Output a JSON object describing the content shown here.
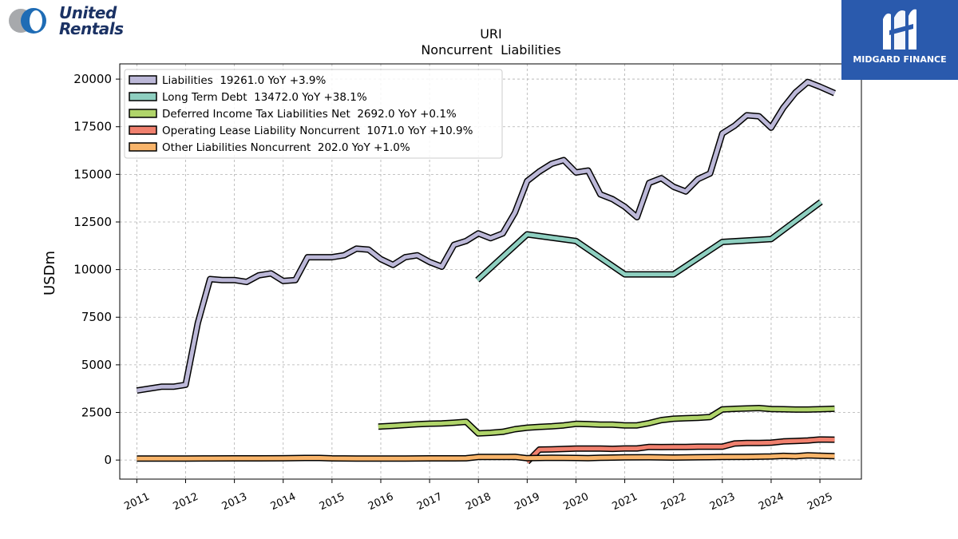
{
  "logos": {
    "left_line1": "United",
    "left_line2": "Rentals",
    "left_color": "#1b3264",
    "right_text": "MIDGARD FINANCE",
    "right_bg": "#2a5aad"
  },
  "chart_data": {
    "type": "line",
    "title": "URI",
    "subtitle": "Noncurrent  Liabilities",
    "ylabel": "USDm",
    "xlabel": "",
    "xlim": [
      2010.65,
      2025.85
    ],
    "ylim": [
      -1000,
      20800
    ],
    "yticks": [
      0,
      2500,
      5000,
      7500,
      10000,
      12500,
      15000,
      17500,
      20000
    ],
    "xticks": [
      "2011",
      "2012",
      "2013",
      "2014",
      "2015",
      "2016",
      "2017",
      "2018",
      "2019",
      "2020",
      "2021",
      "2022",
      "2023",
      "2024",
      "2025"
    ],
    "grid": true,
    "legend_position": "top-left",
    "series": [
      {
        "name": "Liabilities  19261.0 YoY +3.9%",
        "color": "#bcb8d8",
        "points": [
          [
            2011.0,
            3650
          ],
          [
            2011.25,
            3750
          ],
          [
            2011.5,
            3850
          ],
          [
            2011.75,
            3850
          ],
          [
            2012.0,
            3950
          ],
          [
            2012.25,
            7200
          ],
          [
            2012.5,
            9500
          ],
          [
            2012.75,
            9450
          ],
          [
            2013.0,
            9450
          ],
          [
            2013.25,
            9350
          ],
          [
            2013.5,
            9700
          ],
          [
            2013.75,
            9800
          ],
          [
            2014.0,
            9400
          ],
          [
            2014.25,
            9450
          ],
          [
            2014.5,
            10650
          ],
          [
            2014.75,
            10650
          ],
          [
            2015.0,
            10650
          ],
          [
            2015.25,
            10750
          ],
          [
            2015.5,
            11100
          ],
          [
            2015.75,
            11050
          ],
          [
            2016.0,
            10550
          ],
          [
            2016.25,
            10250
          ],
          [
            2016.5,
            10650
          ],
          [
            2016.75,
            10750
          ],
          [
            2017.0,
            10400
          ],
          [
            2017.25,
            10150
          ],
          [
            2017.5,
            11300
          ],
          [
            2017.75,
            11500
          ],
          [
            2018.0,
            11900
          ],
          [
            2018.25,
            11650
          ],
          [
            2018.5,
            11900
          ],
          [
            2018.75,
            13000
          ],
          [
            2019.0,
            14650
          ],
          [
            2019.25,
            15150
          ],
          [
            2019.5,
            15550
          ],
          [
            2019.75,
            15750
          ],
          [
            2020.0,
            15100
          ],
          [
            2020.25,
            15200
          ],
          [
            2020.5,
            13950
          ],
          [
            2020.75,
            13700
          ],
          [
            2021.0,
            13300
          ],
          [
            2021.25,
            12750
          ],
          [
            2021.5,
            14550
          ],
          [
            2021.75,
            14800
          ],
          [
            2022.0,
            14350
          ],
          [
            2022.25,
            14100
          ],
          [
            2022.5,
            14750
          ],
          [
            2022.75,
            15050
          ],
          [
            2023.0,
            17150
          ],
          [
            2023.25,
            17550
          ],
          [
            2023.5,
            18100
          ],
          [
            2023.75,
            18050
          ],
          [
            2024.0,
            17450
          ],
          [
            2024.25,
            18500
          ],
          [
            2024.5,
            19300
          ],
          [
            2024.75,
            19850
          ],
          [
            2025.0,
            19600
          ],
          [
            2025.3,
            19261
          ]
        ]
      },
      {
        "name": "Long Term Debt  13472.0 YoY +38.1%",
        "color": "#8ecfc0",
        "points": [
          [
            2017.98,
            9450
          ],
          [
            2019.0,
            11850
          ],
          [
            2020.0,
            11500
          ],
          [
            2021.0,
            9750
          ],
          [
            2022.0,
            9750
          ],
          [
            2023.0,
            11450
          ],
          [
            2024.0,
            11600
          ],
          [
            2025.02,
            13550
          ]
        ]
      },
      {
        "name": "Deferred Income Tax Liabilities Net  2692.0 YoY +0.1%",
        "color": "#b0d46a",
        "points": [
          [
            2015.95,
            1760
          ],
          [
            2016.25,
            1800
          ],
          [
            2016.5,
            1840
          ],
          [
            2016.75,
            1880
          ],
          [
            2017.0,
            1910
          ],
          [
            2017.25,
            1920
          ],
          [
            2017.5,
            1960
          ],
          [
            2017.75,
            2010
          ],
          [
            2018.0,
            1400
          ],
          [
            2018.25,
            1430
          ],
          [
            2018.5,
            1480
          ],
          [
            2018.75,
            1620
          ],
          [
            2019.0,
            1700
          ],
          [
            2019.25,
            1740
          ],
          [
            2019.5,
            1770
          ],
          [
            2019.75,
            1820
          ],
          [
            2020.0,
            1900
          ],
          [
            2020.25,
            1890
          ],
          [
            2020.5,
            1860
          ],
          [
            2020.75,
            1860
          ],
          [
            2021.0,
            1820
          ],
          [
            2021.25,
            1820
          ],
          [
            2021.5,
            1940
          ],
          [
            2021.75,
            2100
          ],
          [
            2022.0,
            2170
          ],
          [
            2022.25,
            2200
          ],
          [
            2022.5,
            2220
          ],
          [
            2022.75,
            2260
          ],
          [
            2023.0,
            2660
          ],
          [
            2023.25,
            2690
          ],
          [
            2023.5,
            2710
          ],
          [
            2023.75,
            2730
          ],
          [
            2024.0,
            2680
          ],
          [
            2024.25,
            2670
          ],
          [
            2024.5,
            2650
          ],
          [
            2024.75,
            2650
          ],
          [
            2025.0,
            2670
          ],
          [
            2025.3,
            2692
          ]
        ]
      },
      {
        "name": "Operating Lease Liability Noncurrent  1071.0 YoY +10.9%",
        "color": "#f0806e",
        "points": [
          [
            2019.0,
            -100
          ],
          [
            2019.25,
            550
          ],
          [
            2019.5,
            560
          ],
          [
            2019.75,
            580
          ],
          [
            2020.0,
            600
          ],
          [
            2020.25,
            600
          ],
          [
            2020.5,
            600
          ],
          [
            2020.75,
            590
          ],
          [
            2021.0,
            610
          ],
          [
            2021.25,
            610
          ],
          [
            2021.5,
            690
          ],
          [
            2021.75,
            680
          ],
          [
            2022.0,
            690
          ],
          [
            2022.25,
            690
          ],
          [
            2022.5,
            700
          ],
          [
            2022.75,
            700
          ],
          [
            2023.0,
            700
          ],
          [
            2023.25,
            870
          ],
          [
            2023.5,
            900
          ],
          [
            2023.75,
            900
          ],
          [
            2024.0,
            910
          ],
          [
            2024.25,
            980
          ],
          [
            2024.5,
            1000
          ],
          [
            2024.75,
            1030
          ],
          [
            2025.0,
            1080
          ],
          [
            2025.3,
            1071
          ]
        ]
      },
      {
        "name": "Other Liabilities Noncurrent  202.0 YoY +1.0%",
        "color": "#f8b46a",
        "points": [
          [
            2011.0,
            80
          ],
          [
            2011.5,
            80
          ],
          [
            2012.0,
            80
          ],
          [
            2012.5,
            85
          ],
          [
            2013.0,
            90
          ],
          [
            2013.5,
            90
          ],
          [
            2014.0,
            95
          ],
          [
            2014.5,
            110
          ],
          [
            2014.75,
            110
          ],
          [
            2015.0,
            90
          ],
          [
            2015.5,
            80
          ],
          [
            2016.0,
            80
          ],
          [
            2016.5,
            80
          ],
          [
            2017.0,
            90
          ],
          [
            2017.5,
            90
          ],
          [
            2017.75,
            95
          ],
          [
            2018.0,
            160
          ],
          [
            2018.5,
            160
          ],
          [
            2018.75,
            170
          ],
          [
            2019.0,
            100
          ],
          [
            2019.5,
            120
          ],
          [
            2020.0,
            110
          ],
          [
            2020.25,
            100
          ],
          [
            2020.5,
            120
          ],
          [
            2021.0,
            140
          ],
          [
            2021.5,
            150
          ],
          [
            2022.0,
            130
          ],
          [
            2022.5,
            150
          ],
          [
            2023.0,
            160
          ],
          [
            2023.5,
            170
          ],
          [
            2024.0,
            190
          ],
          [
            2024.25,
            220
          ],
          [
            2024.5,
            200
          ],
          [
            2024.75,
            250
          ],
          [
            2025.0,
            230
          ],
          [
            2025.3,
            202
          ]
        ]
      }
    ]
  }
}
